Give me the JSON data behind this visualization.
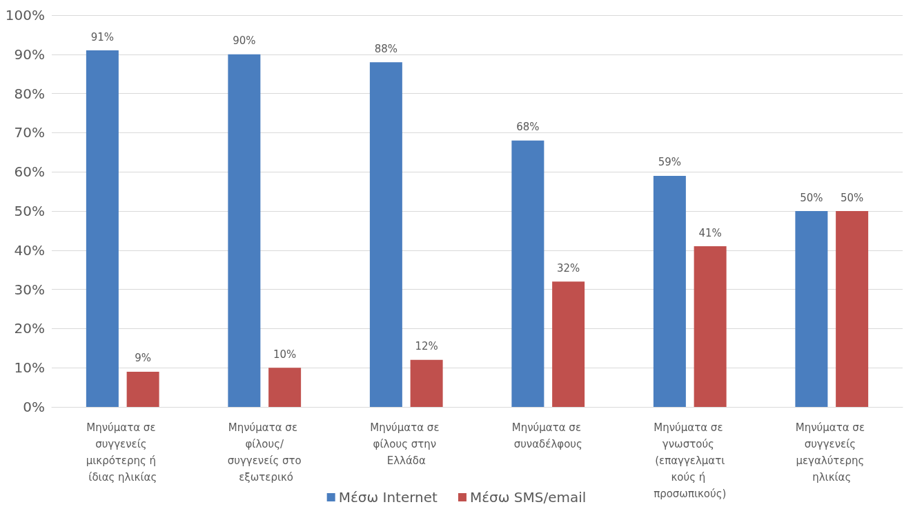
{
  "chart_data": {
    "type": "bar",
    "categories": [
      "Μηνύματα σε συγγενείς μικρότερης ή ίδιας ηλικίας",
      "Μηνύματα σε φίλους/συγγενείς στο εξωτερικό",
      "Μηνύματα σε φίλους στην Ελλάδα",
      "Μηνύματα σε συναδέλφους",
      "Μηνύματα σε γνωστούς (επαγγελματικούς ή προσωπικούς)",
      "Μηνύματα σε συγγενείς μεγαλύτερης ηλικίας"
    ],
    "series": [
      {
        "name": "Μέσω Internet",
        "color": "#4a7ebf",
        "values": [
          91,
          90,
          88,
          68,
          59,
          50
        ],
        "value_labels": [
          "91%",
          "90%",
          "88%",
          "68%",
          "59%",
          "50%"
        ]
      },
      {
        "name": "Μέσω SMS/email",
        "color": "#c0504d",
        "values": [
          9,
          10,
          12,
          32,
          41,
          50
        ],
        "value_labels": [
          "9%",
          "10%",
          "12%",
          "32%",
          "41%",
          "50%"
        ]
      }
    ],
    "ylim": [
      0,
      100
    ],
    "yticks": [
      {
        "value": 0,
        "label": "0%"
      },
      {
        "value": 10,
        "label": "10%"
      },
      {
        "value": 20,
        "label": "20%"
      },
      {
        "value": 30,
        "label": "30%"
      },
      {
        "value": 40,
        "label": "40%"
      },
      {
        "value": 50,
        "label": "50%"
      },
      {
        "value": 60,
        "label": "60%"
      },
      {
        "value": 70,
        "label": "70%"
      },
      {
        "value": 80,
        "label": "80%"
      },
      {
        "value": 90,
        "label": "90%"
      },
      {
        "value": 100,
        "label": "100%"
      }
    ],
    "grid": "y",
    "legend": "bottom"
  }
}
